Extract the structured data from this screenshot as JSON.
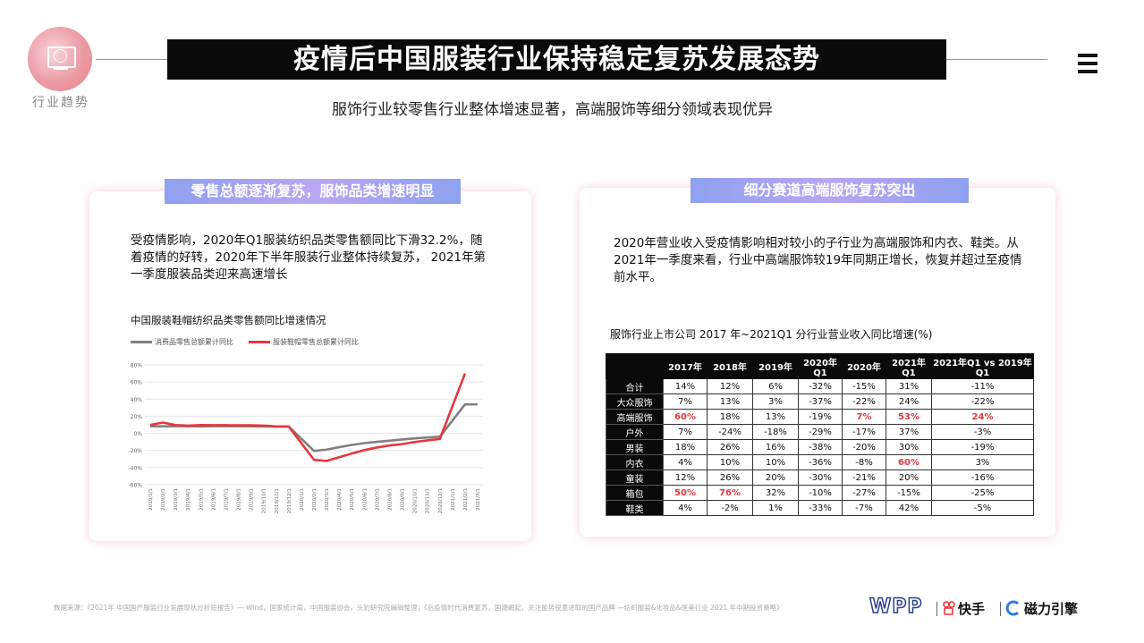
{
  "header": {
    "logo_label": "行业趋势",
    "title": "疫情后中国服装行业保持稳定复苏发展态势",
    "subtitle": "服饰行业较零售行业整体增速显著，高端服饰等细分领域表现优异"
  },
  "left_panel": {
    "tag": "零售总额逐渐复苏，服饰品类增速明显",
    "text": "受疫情影响，2020年Q1服装纺织品类零售额同比下滑32.2%，随着疫情的好转，2020年下半年服装行业整体持续复苏， 2021年第一季度服装品类迎来高速增长"
  },
  "right_panel": {
    "tag": "细分赛道高端服饰复苏突出",
    "text": "2020年营业收入受疫情影响相对较小的子行业为高端服饰和内衣、鞋类。从2021年一季度来看，行业中高端服饰较19年同期正增长，恢复并超过至疫情前水平。",
    "table_title": "服饰行业上市公司 2017 年~2021Q1 分行业营业收入同比增速(%)"
  },
  "chart_data": [
    {
      "type": "line",
      "title": "中国服装鞋帽纺织品类零售额同比增速情况",
      "x": [
        "2019/1/1",
        "2019/2/1",
        "2019/3/1",
        "2019/4/1",
        "2019/5/1",
        "2019/6/1",
        "2019/7/1",
        "2019/8/1",
        "2019/9/1",
        "2019/10/1",
        "2019/11/1",
        "2019/12/1",
        "2020/1/1",
        "2020/2/1",
        "2020/3/1",
        "2020/4/1",
        "2020/5/1",
        "2020/6/1",
        "2020/7/1",
        "2020/8/1",
        "2020/9/1",
        "2020/10/1",
        "2020/11/1",
        "2020/12/1",
        "2021/1/1",
        "2021/2/1",
        "2021/3/1"
      ],
      "series": [
        {
          "name": "消费品零售总额累计同比",
          "color": "#808080",
          "values": [
            8.2,
            8.2,
            8.3,
            8.3,
            8.1,
            8.3,
            8.3,
            8.3,
            8.2,
            8.1,
            8.0,
            8.0,
            null,
            -20.5,
            -19.0,
            -16.2,
            -13.5,
            -11.4,
            -9.9,
            -8.6,
            -7.2,
            -5.9,
            -4.8,
            -3.9,
            null,
            33.8,
            33.9
          ]
        },
        {
          "name": "服装鞋帽零售总额累计同比",
          "color": "#e8363d",
          "values": [
            9.9,
            12.6,
            9.7,
            9.0,
            9.7,
            9.5,
            9.5,
            9.4,
            9.4,
            9.0,
            8.1,
            8.0,
            null,
            -30.9,
            -32.2,
            -27.9,
            -23.5,
            -19.6,
            -16.6,
            -14.1,
            -12.6,
            -10.1,
            -8.2,
            -6.6,
            null,
            70.0,
            null
          ]
        }
      ],
      "ylim": [
        -60,
        80
      ],
      "yticks": [
        "80%",
        "60%",
        "40%",
        "20%",
        "0%",
        "-20%",
        "-40%",
        "-60%"
      ],
      "grid": true,
      "legend_position": "top"
    },
    {
      "type": "table",
      "columns": [
        "",
        "2017年",
        "2018年",
        "2019年",
        "2020年Q1",
        "2020年",
        "2021年Q1",
        "2021年Q1 vs 2019年Q1"
      ],
      "rows": [
        {
          "label": "合计",
          "cells": [
            "14%",
            "12%",
            "6%",
            "-32%",
            "-15%",
            "31%",
            "-11%"
          ]
        },
        {
          "label": "大众服饰",
          "cells": [
            "7%",
            "13%",
            "3%",
            "-37%",
            "-22%",
            "24%",
            "-22%"
          ]
        },
        {
          "label": "高端服饰",
          "cells": [
            "60%",
            "18%",
            "13%",
            "-19%",
            "7%",
            "53%",
            "24%"
          ],
          "highlight": [
            0,
            4,
            5,
            6
          ]
        },
        {
          "label": "户外",
          "cells": [
            "7%",
            "-24%",
            "-18%",
            "-29%",
            "-17%",
            "37%",
            "-3%"
          ]
        },
        {
          "label": "男装",
          "cells": [
            "18%",
            "26%",
            "16%",
            "-38%",
            "-20%",
            "30%",
            "-19%"
          ]
        },
        {
          "label": "内衣",
          "cells": [
            "4%",
            "10%",
            "10%",
            "-36%",
            "-8%",
            "60%",
            "3%"
          ],
          "highlight": [
            5
          ]
        },
        {
          "label": "童装",
          "cells": [
            "12%",
            "26%",
            "20%",
            "-30%",
            "-21%",
            "20%",
            "-16%"
          ]
        },
        {
          "label": "箱包",
          "cells": [
            "50%",
            "76%",
            "32%",
            "-10%",
            "-27%",
            "-15%",
            "-25%"
          ],
          "highlight": [
            0,
            1
          ]
        },
        {
          "label": "鞋类",
          "cells": [
            "4%",
            "-2%",
            "1%",
            "-33%",
            "-7%",
            "42%",
            "-5%"
          ]
        }
      ]
    }
  ],
  "footer": {
    "source": "数据来源：《2021年 中国国产服装行业发展现状分析短报告》— Wind，国家统计局，中国服装协会，头豹研究院编辑整理；《后疫情时代消费复苏，国潮崛起，关注能势锐意进取的国产品牌 —纺织服装&化妆品&医美行业 2021 年中期投资策略》",
    "brand1": "WPP",
    "brand2": "快手",
    "brand3": "磁力引擎"
  }
}
